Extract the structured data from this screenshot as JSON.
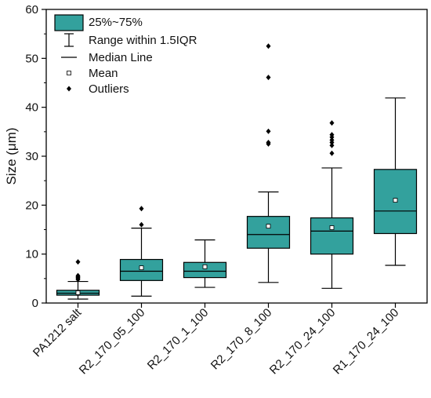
{
  "chart_data": {
    "type": "box",
    "title": "",
    "xlabel": "",
    "ylabel": "Size (μm)",
    "ylim": [
      0,
      60
    ],
    "yticks": [
      0,
      10,
      20,
      30,
      40,
      50,
      60
    ],
    "box_color": "#33a19d",
    "legend": {
      "placement": "top-left",
      "entries": [
        {
          "marker": "box",
          "label": "25%~75%"
        },
        {
          "marker": "whisker",
          "label": "Range within 1.5IQR"
        },
        {
          "marker": "line",
          "label": "Median Line"
        },
        {
          "marker": "open-square",
          "label": "Mean"
        },
        {
          "marker": "diamond",
          "label": "Outliers"
        }
      ]
    },
    "categories": [
      "PA1212 salt",
      "R2_170_05_100",
      "R2_170_1_100",
      "R2_170_8_100",
      "R2_170_24_100",
      "R1_170_24_100"
    ],
    "boxes": [
      {
        "whisker_low": 0.8,
        "q1": 1.6,
        "median": 2.0,
        "q3": 2.6,
        "whisker_high": 4.4,
        "mean": 2.1,
        "outliers": [
          4.8,
          5.0,
          5.2,
          5.4,
          5.6,
          8.4
        ]
      },
      {
        "whisker_low": 1.4,
        "q1": 4.6,
        "median": 6.5,
        "q3": 8.9,
        "whisker_high": 15.3,
        "mean": 7.2,
        "outliers": [
          16.0,
          19.3
        ]
      },
      {
        "whisker_low": 3.2,
        "q1": 5.2,
        "median": 6.5,
        "q3": 8.3,
        "whisker_high": 12.9,
        "mean": 7.4,
        "outliers": []
      },
      {
        "whisker_low": 4.2,
        "q1": 11.2,
        "median": 14.0,
        "q3": 17.7,
        "whisker_high": 22.7,
        "mean": 15.7,
        "outliers": [
          32.5,
          32.8,
          35.1,
          46.1,
          52.5
        ]
      },
      {
        "whisker_low": 3.0,
        "q1": 10.0,
        "median": 14.7,
        "q3": 17.4,
        "whisker_high": 27.6,
        "mean": 15.4,
        "outliers": [
          30.6,
          32.2,
          32.8,
          33.3,
          33.9,
          34.4,
          36.8
        ]
      },
      {
        "whisker_low": 7.7,
        "q1": 14.2,
        "median": 18.8,
        "q3": 27.3,
        "whisker_high": 41.9,
        "mean": 21.0,
        "outliers": []
      }
    ]
  }
}
